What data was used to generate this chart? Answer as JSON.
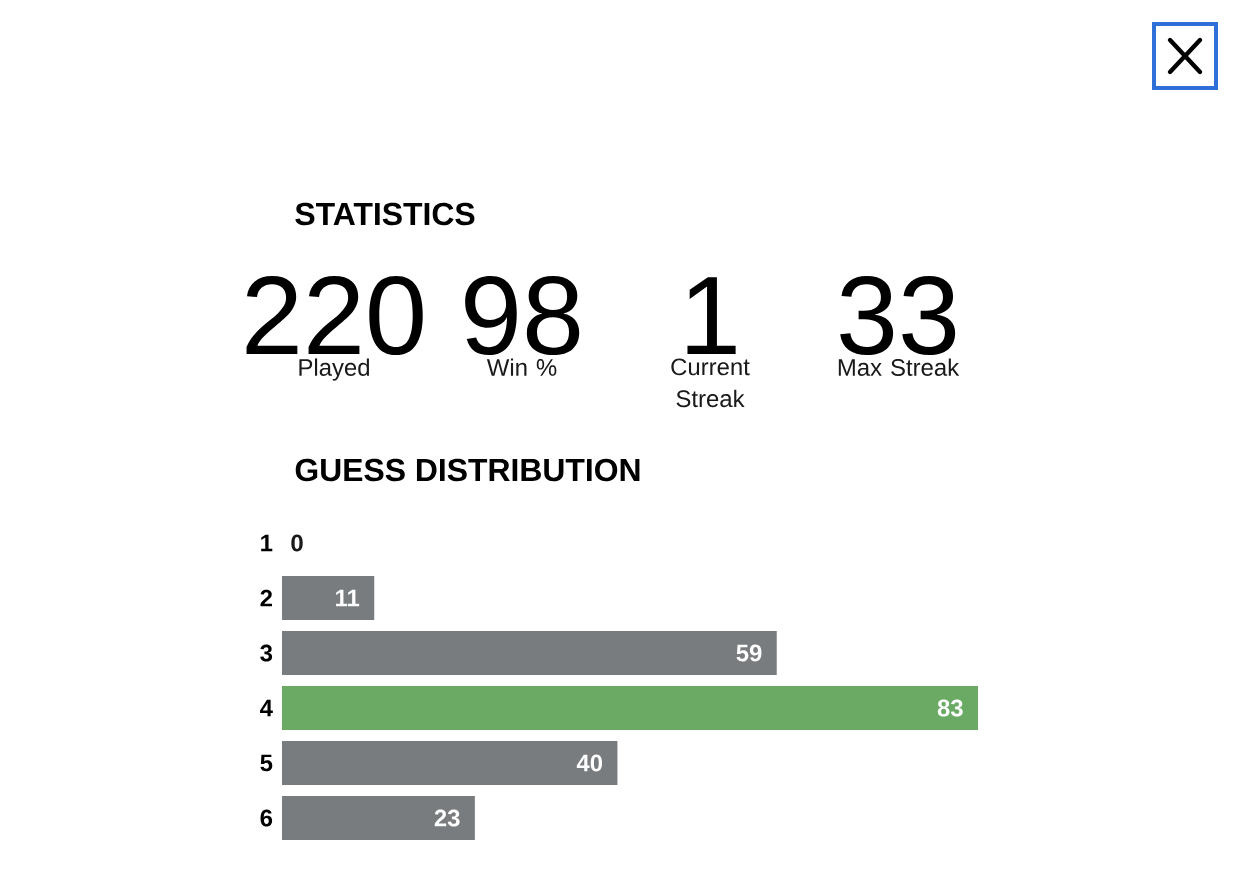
{
  "chart_data": [
    {
      "type": "other",
      "title": "STATISTICS",
      "categories": [
        "Played",
        "Win %",
        "Current Streak",
        "Max Streak"
      ],
      "values": [
        220,
        98,
        1,
        33
      ],
      "data_labels": true
    },
    {
      "type": "bar",
      "title": "GUESS DISTRIBUTION",
      "orientation": "horizontal",
      "categories": [
        "1",
        "2",
        "3",
        "4",
        "5",
        "6"
      ],
      "values": [
        0,
        11,
        59,
        83,
        40,
        23
      ],
      "colors": [
        "#787c7e",
        "#787c7e",
        "#787c7e",
        "#6aaa64",
        "#787c7e",
        "#787c7e"
      ],
      "data_labels": true
    }
  ]
}
